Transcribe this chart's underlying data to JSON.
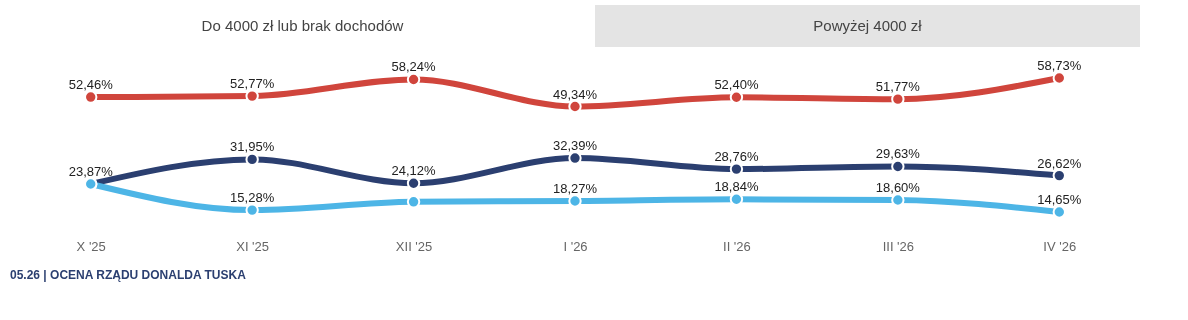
{
  "chart_data": {
    "type": "line",
    "categories": [
      "X '25",
      "XI '25",
      "XII '25",
      "I '26",
      "II '26",
      "III '26",
      "IV '26"
    ],
    "series": [
      {
        "color": "#d0453c",
        "values": [
          52.46,
          52.77,
          58.24,
          49.34,
          52.4,
          51.77,
          58.73
        ],
        "value_labels": [
          "52,46%",
          "52,77%",
          "58,24%",
          "49,34%",
          "52,40%",
          "51,77%",
          "58,73%"
        ]
      },
      {
        "color": "#2b3f70",
        "values": [
          23.87,
          31.95,
          24.12,
          32.39,
          28.76,
          29.63,
          26.62
        ],
        "value_labels": [
          "23,87%",
          "31,95%",
          "24,12%",
          "32,39%",
          "28,76%",
          "29,63%",
          "26,62%"
        ]
      },
      {
        "color": "#4db5e6",
        "values": [
          23.87,
          15.28,
          18,
          18.27,
          18.84,
          18.6,
          14.65
        ],
        "value_labels": [
          null,
          "15,28%",
          null,
          "18,27%",
          "18,84%",
          "18,60%",
          "14,65%"
        ]
      }
    ],
    "marker": "circle",
    "line_style": "solid",
    "grid": false,
    "annotations": [
      "Do 4000 zł lub brak dochodów",
      "Powyżej 4000 zł",
      "05.26 | OCENA RZĄDU DONALDA TUSKA"
    ]
  }
}
